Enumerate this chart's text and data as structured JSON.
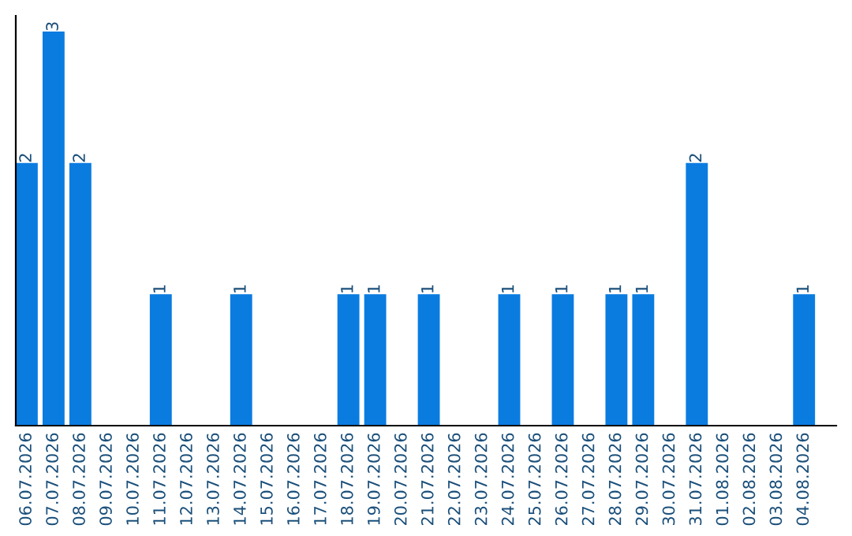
{
  "chart_data": {
    "type": "bar",
    "categories": [
      "06.07.2026",
      "07.07.2026",
      "08.07.2026",
      "09.07.2026",
      "10.07.2026",
      "11.07.2026",
      "12.07.2026",
      "13.07.2026",
      "14.07.2026",
      "15.07.2026",
      "16.07.2026",
      "17.07.2026",
      "18.07.2026",
      "19.07.2026",
      "20.07.2026",
      "21.07.2026",
      "22.07.2026",
      "23.07.2026",
      "24.07.2026",
      "25.07.2026",
      "26.07.2026",
      "27.07.2026",
      "28.07.2026",
      "29.07.2026",
      "30.07.2026",
      "31.07.2026",
      "01.08.2026",
      "02.08.2026",
      "03.08.2026",
      "04.08.2026"
    ],
    "values": [
      2,
      3,
      2,
      0,
      0,
      1,
      0,
      0,
      1,
      0,
      0,
      0,
      1,
      1,
      0,
      1,
      0,
      0,
      1,
      0,
      1,
      0,
      1,
      1,
      0,
      2,
      0,
      0,
      0,
      1
    ],
    "value_labels": [
      "2",
      "3",
      "2",
      null,
      null,
      "1",
      null,
      null,
      "1",
      null,
      null,
      null,
      "1",
      "1",
      null,
      "1",
      null,
      null,
      "1",
      null,
      "1",
      null,
      "1",
      "1",
      null,
      "2",
      null,
      null,
      null,
      "1"
    ],
    "color": "#0a7ce0",
    "tick_labels": "x",
    "grid": false,
    "legend": false
  }
}
